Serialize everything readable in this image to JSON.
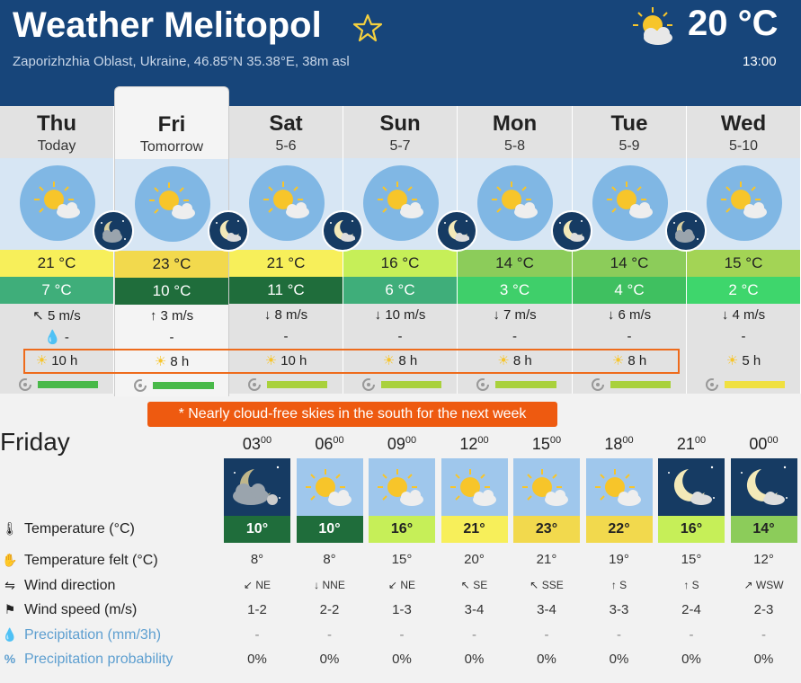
{
  "header": {
    "title": "Weather Melitopol",
    "subtitle": "Zaporizhzhia Oblast, Ukraine, 46.85°N 35.38°E, 38m asl",
    "current_temp": "20 °C",
    "current_time": "13:00"
  },
  "days": [
    {
      "name": "Thu",
      "date": "Today",
      "tmax": "21 °C",
      "tmin": "7 °C",
      "wind": "5 m/s",
      "wind_arrow": "↖",
      "precip": "-",
      "sun": "10 h",
      "max_color": "#f7ef5a",
      "min_color": "#3fae7a",
      "bar_color": "#49b949",
      "night": "cloudy"
    },
    {
      "name": "Fri",
      "date": "Tomorrow",
      "tmax": "23 °C",
      "tmin": "10 °C",
      "wind": "3 m/s",
      "wind_arrow": "↑",
      "precip": "-",
      "sun": "8 h",
      "max_color": "#f2d94d",
      "min_color": "#1f6d3b",
      "bar_color": "#49b949",
      "night": "moon"
    },
    {
      "name": "Sat",
      "date": "5-6",
      "tmax": "21 °C",
      "tmin": "11 °C",
      "wind": "8 m/s",
      "wind_arrow": "↓",
      "precip": "-",
      "sun": "10 h",
      "max_color": "#f7ef5a",
      "min_color": "#1f6d3b",
      "bar_color": "#a9d13c",
      "night": "moon"
    },
    {
      "name": "Sun",
      "date": "5-7",
      "tmax": "16 °C",
      "tmin": "6 °C",
      "wind": "10 m/s",
      "wind_arrow": "↓",
      "precip": "-",
      "sun": "8 h",
      "max_color": "#c6ef58",
      "min_color": "#3fae7a",
      "bar_color": "#a9d13c",
      "night": "moon"
    },
    {
      "name": "Mon",
      "date": "5-8",
      "tmax": "14 °C",
      "tmin": "3 °C",
      "wind": "7 m/s",
      "wind_arrow": "↓",
      "precip": "-",
      "sun": "8 h",
      "max_color": "#8ccc5a",
      "min_color": "#3fcf6a",
      "bar_color": "#a9d13c",
      "night": "moon"
    },
    {
      "name": "Tue",
      "date": "5-9",
      "tmax": "14 °C",
      "tmin": "4 °C",
      "wind": "6 m/s",
      "wind_arrow": "↓",
      "precip": "-",
      "sun": "8 h",
      "max_color": "#8ccc5a",
      "min_color": "#3fc060",
      "bar_color": "#a9d13c",
      "night": "cloudy"
    },
    {
      "name": "Wed",
      "date": "5-10",
      "tmax": "15 °C",
      "tmin": "2 °C",
      "wind": "4 m/s",
      "wind_arrow": "↓",
      "precip": "-",
      "sun": "5 h",
      "max_color": "#a3d455",
      "min_color": "#3ed66c",
      "bar_color": "#f0e040",
      "night": "none"
    }
  ],
  "notice": "* Nearly cloud-free skies in the south for the next week",
  "hourly": {
    "title": "Friday",
    "labels": {
      "temperature": "Temperature (°C)",
      "felt": "Temperature felt (°C)",
      "direction": "Wind direction",
      "speed": "Wind speed (m/s)",
      "precip": "Precipitation (mm/3h)",
      "prob": "Precipitation probability"
    },
    "hours": [
      {
        "hour": "03",
        "min": "00",
        "temp": "10°",
        "felt": "8°",
        "dir_arrow": "↙",
        "dir": "NE",
        "speed": "1-2",
        "precip": "-",
        "prob": "0%",
        "color": "#1f6d3b",
        "text": "#fff",
        "night": true,
        "overcast": true
      },
      {
        "hour": "06",
        "min": "00",
        "temp": "10°",
        "felt": "8°",
        "dir_arrow": "↓",
        "dir": "NNE",
        "speed": "2-2",
        "precip": "-",
        "prob": "0%",
        "color": "#1f6d3b",
        "text": "#fff",
        "night": false,
        "overcast": false
      },
      {
        "hour": "09",
        "min": "00",
        "temp": "16°",
        "felt": "15°",
        "dir_arrow": "↙",
        "dir": "NE",
        "speed": "1-3",
        "precip": "-",
        "prob": "0%",
        "color": "#c6ef58",
        "text": "#222",
        "night": false,
        "overcast": false
      },
      {
        "hour": "12",
        "min": "00",
        "temp": "21°",
        "felt": "20°",
        "dir_arrow": "↖",
        "dir": "SE",
        "speed": "3-4",
        "precip": "-",
        "prob": "0%",
        "color": "#f7ef5a",
        "text": "#222",
        "night": false,
        "overcast": false
      },
      {
        "hour": "15",
        "min": "00",
        "temp": "23°",
        "felt": "21°",
        "dir_arrow": "↖",
        "dir": "SSE",
        "speed": "3-4",
        "precip": "-",
        "prob": "0%",
        "color": "#f2d94d",
        "text": "#222",
        "night": false,
        "overcast": false
      },
      {
        "hour": "18",
        "min": "00",
        "temp": "22°",
        "felt": "19°",
        "dir_arrow": "↑",
        "dir": "S",
        "speed": "3-3",
        "precip": "-",
        "prob": "0%",
        "color": "#f2d94d",
        "text": "#222",
        "night": false,
        "overcast": false
      },
      {
        "hour": "21",
        "min": "00",
        "temp": "16°",
        "felt": "15°",
        "dir_arrow": "↑",
        "dir": "S",
        "speed": "2-4",
        "precip": "-",
        "prob": "0%",
        "color": "#c6ef58",
        "text": "#222",
        "night": true,
        "overcast": false
      },
      {
        "hour": "00",
        "min": "00",
        "temp": "14°",
        "felt": "12°",
        "dir_arrow": "↗",
        "dir": "WSW",
        "speed": "2-3",
        "precip": "-",
        "prob": "0%",
        "color": "#8ccc5a",
        "text": "#222",
        "night": true,
        "overcast": false
      }
    ]
  },
  "icons": {
    "favorite": "star-icon",
    "current": "partly-cloudy-icon",
    "thermometer": "thermometer-icon",
    "felt": "hand-icon",
    "direction": "wind-sock-icon",
    "speed": "flag-icon",
    "precip": "raindrop-icon",
    "prob": "percent-icon",
    "freshness": "refresh-icon"
  }
}
